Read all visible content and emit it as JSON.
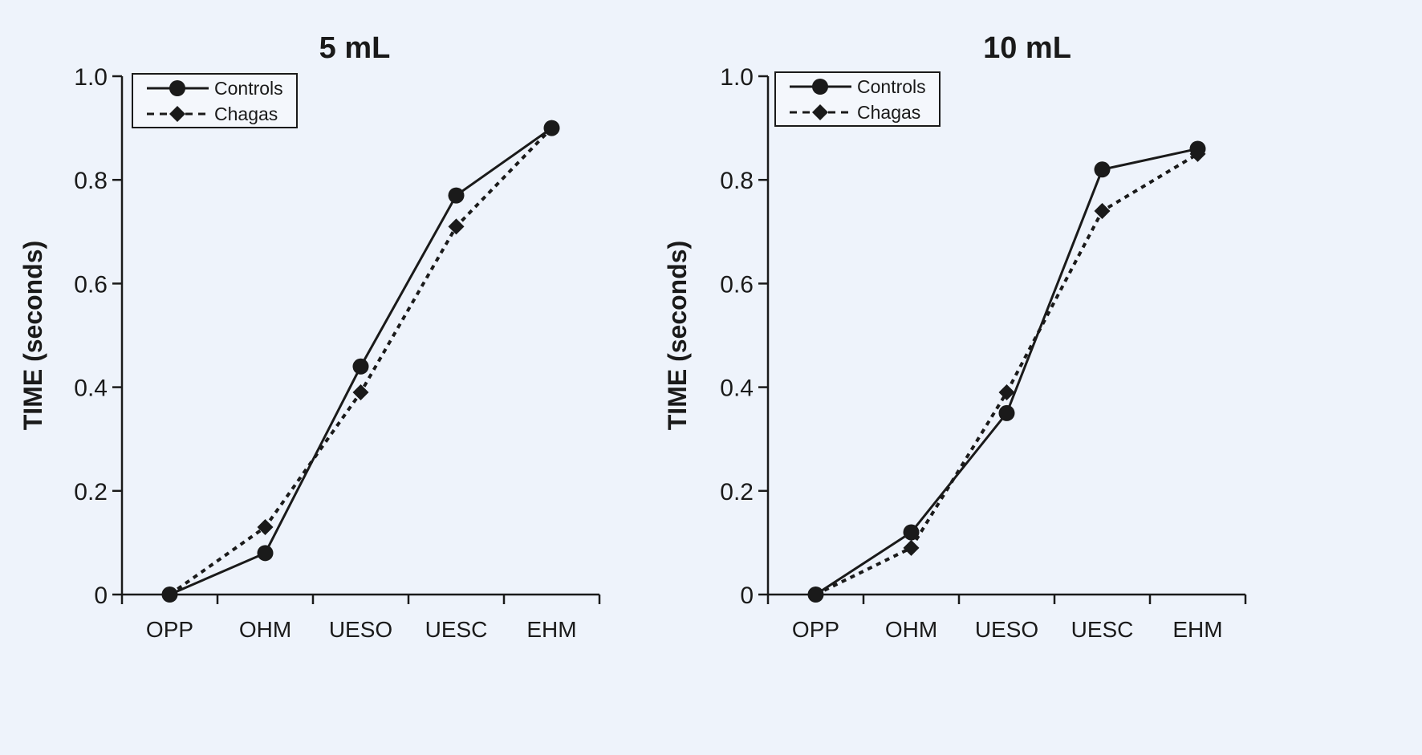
{
  "chart_data": [
    {
      "type": "line",
      "title": "5 mL",
      "ylabel": "TIME (seconds)",
      "xlabel": "",
      "categories": [
        "OPP",
        "OHM",
        "UESO",
        "UESC",
        "EHM"
      ],
      "ylim": [
        0,
        1.0
      ],
      "yticks": [
        "0",
        "0.2",
        "0.4",
        "0.6",
        "0.8",
        "1.0"
      ],
      "legend_position": "top-left",
      "grid": false,
      "series": [
        {
          "name": "Controls",
          "style": "solid",
          "marker": "circle",
          "values": [
            0.0,
            0.08,
            0.44,
            0.77,
            0.9
          ]
        },
        {
          "name": "Chagas",
          "style": "dotted",
          "marker": "diamond",
          "values": [
            0.0,
            0.13,
            0.39,
            0.71,
            0.9
          ]
        }
      ]
    },
    {
      "type": "line",
      "title": "10 mL",
      "ylabel": "TIME (seconds)",
      "xlabel": "",
      "categories": [
        "OPP",
        "OHM",
        "UESO",
        "UESC",
        "EHM"
      ],
      "ylim": [
        0,
        1.0
      ],
      "yticks": [
        "0",
        "0.2",
        "0.4",
        "0.6",
        "0.8",
        "1.0"
      ],
      "legend_position": "top-left",
      "grid": false,
      "series": [
        {
          "name": "Controls",
          "style": "solid",
          "marker": "circle",
          "values": [
            0.0,
            0.12,
            0.35,
            0.82,
            0.86
          ]
        },
        {
          "name": "Chagas",
          "style": "dotted",
          "marker": "diamond",
          "values": [
            0.0,
            0.09,
            0.39,
            0.74,
            0.85
          ]
        }
      ]
    }
  ],
  "colors": {
    "line": "#1a1a1a",
    "background": "#eef3fb"
  }
}
